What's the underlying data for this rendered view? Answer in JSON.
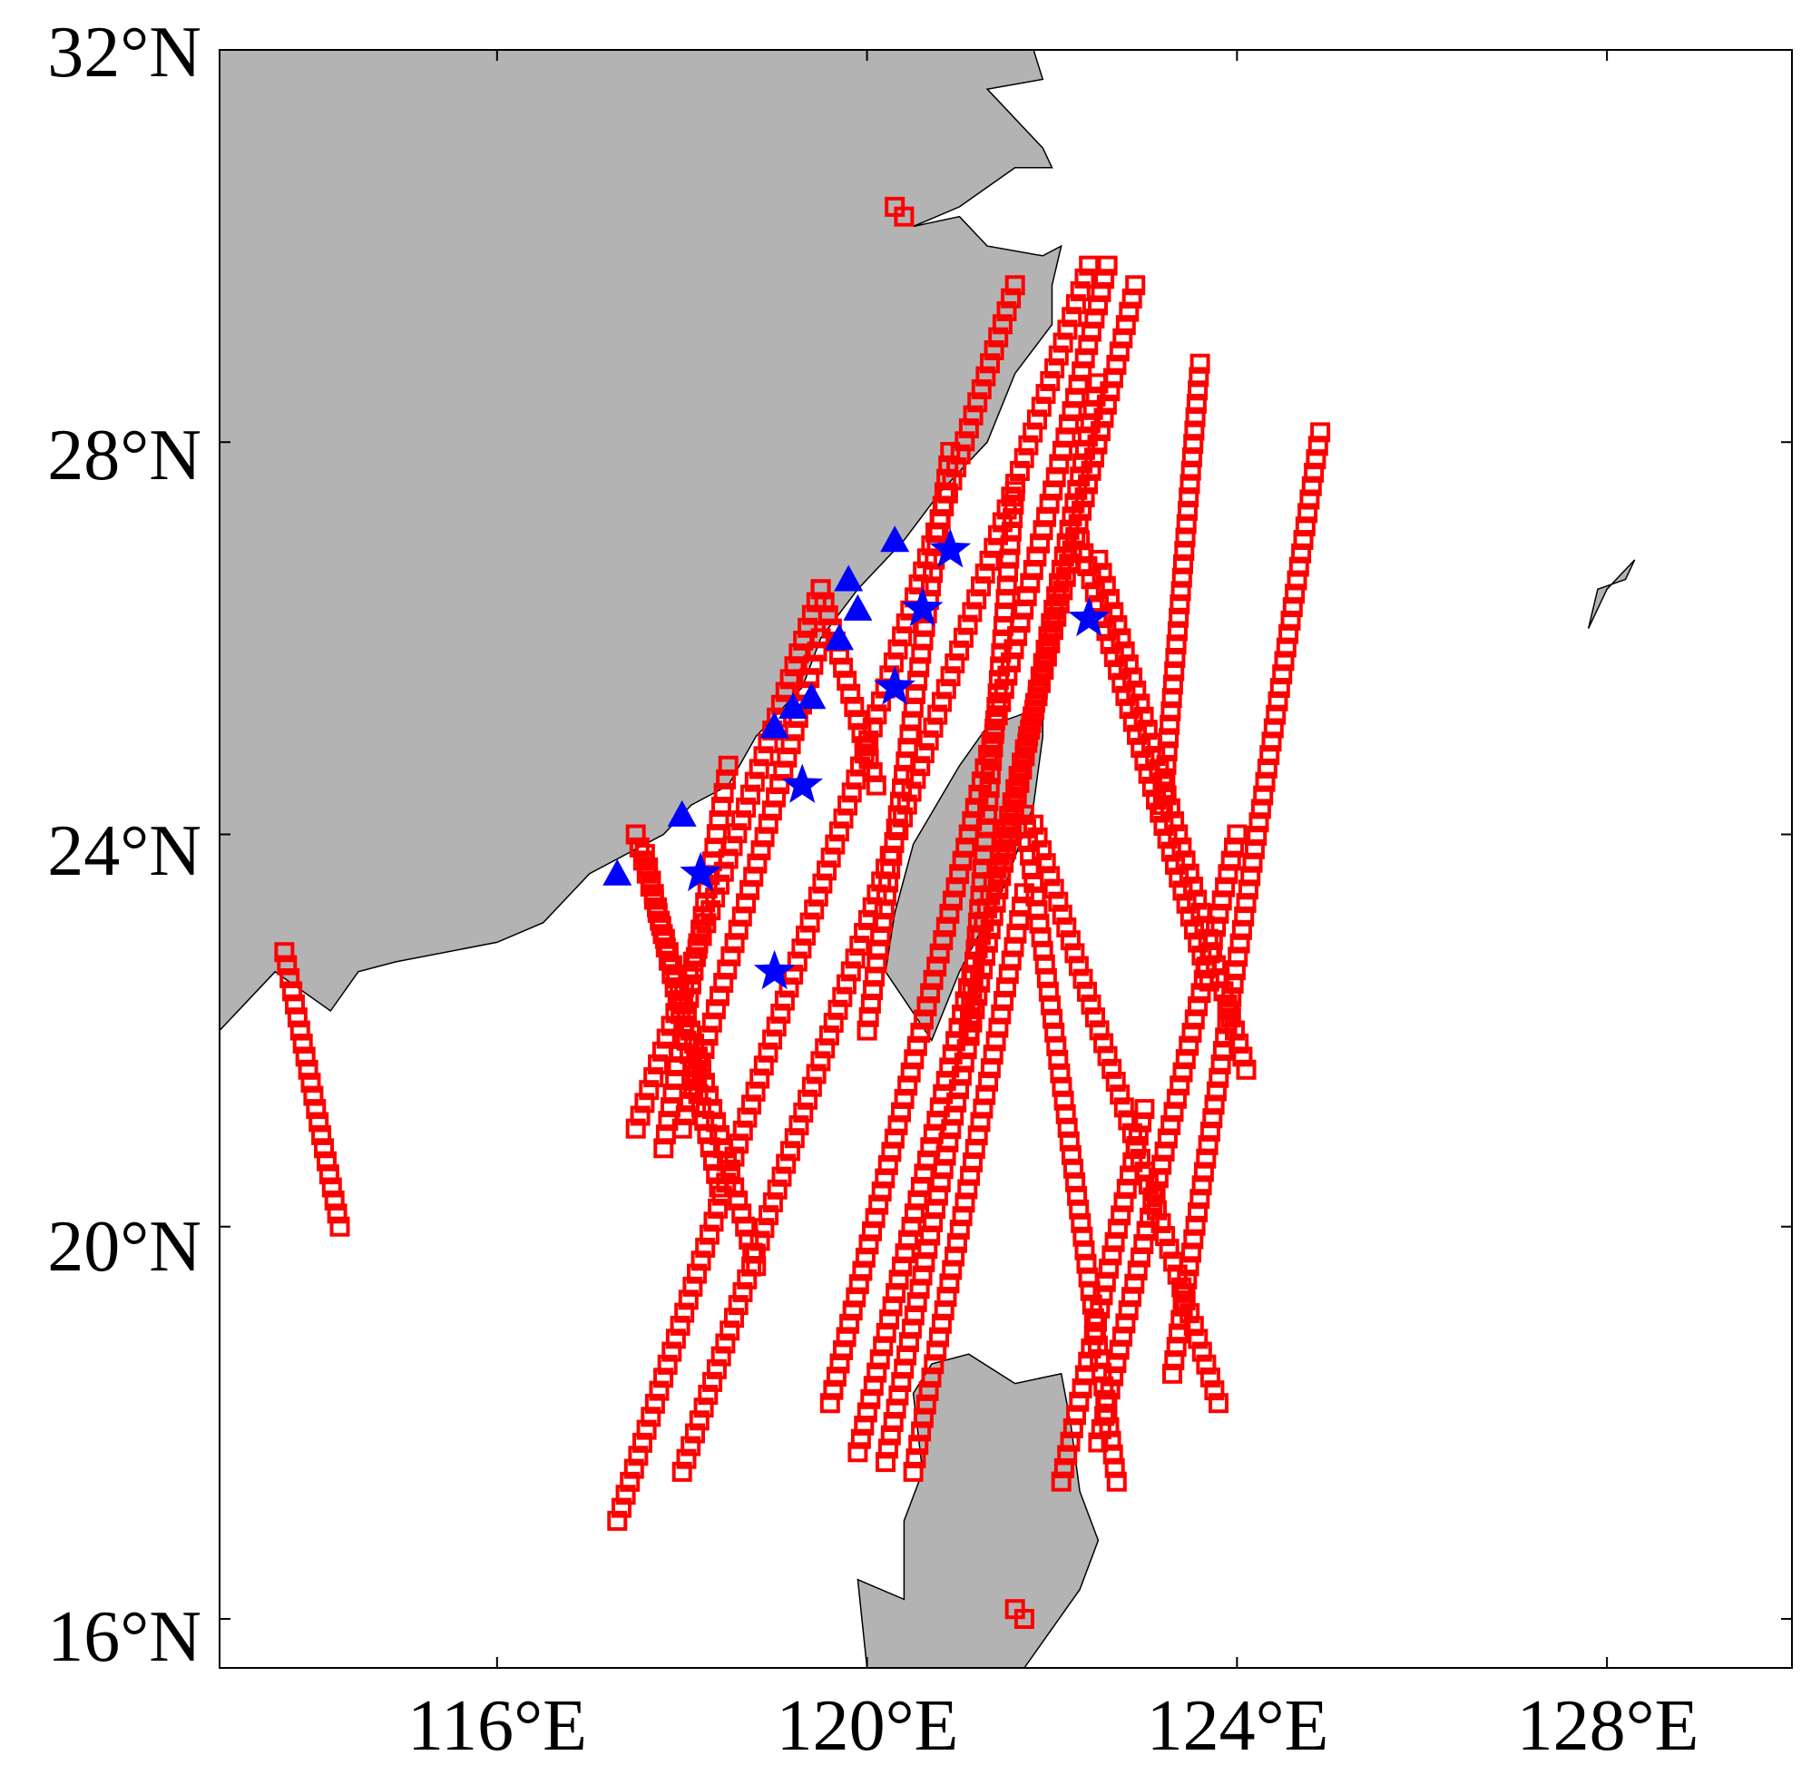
{
  "colors": {
    "land": "#b3b3b3",
    "coastline": "#000000",
    "track": "#ff0000",
    "marker": "#0000ff",
    "frame": "#000000"
  },
  "axes": {
    "x_ticks": [
      {
        "value": 116,
        "label": "116°E"
      },
      {
        "value": 120,
        "label": "120°E"
      },
      {
        "value": 124,
        "label": "124°E"
      },
      {
        "value": 128,
        "label": "128°E"
      }
    ],
    "y_ticks": [
      {
        "value": 32,
        "label": "32°N"
      },
      {
        "value": 28,
        "label": "28°N"
      },
      {
        "value": 24,
        "label": "24°N"
      },
      {
        "value": 20,
        "label": "20°N"
      },
      {
        "value": 16,
        "label": "16°N"
      }
    ],
    "lon_range": [
      113,
      130
    ],
    "lat_range": [
      15.5,
      32
    ]
  },
  "chart_data": {
    "type": "scatter",
    "lon_range": [
      113,
      130
    ],
    "lat_range": [
      15.5,
      32
    ],
    "land": [
      {
        "name": "mainland",
        "lonlat": [
          [
            113,
            32
          ],
          [
            121.8,
            32
          ],
          [
            121.9,
            31.7
          ],
          [
            121.3,
            31.6
          ],
          [
            121.9,
            31.0
          ],
          [
            122.0,
            30.8
          ],
          [
            121.6,
            30.8
          ],
          [
            121.0,
            30.4
          ],
          [
            120.5,
            30.2
          ],
          [
            121.0,
            30.3
          ],
          [
            121.3,
            30.0
          ],
          [
            121.9,
            29.9
          ],
          [
            122.1,
            30.0
          ],
          [
            122.0,
            29.6
          ],
          [
            122.0,
            29.2
          ],
          [
            121.6,
            28.7
          ],
          [
            121.3,
            28.0
          ],
          [
            120.8,
            27.5
          ],
          [
            120.4,
            27.0
          ],
          [
            119.9,
            26.5
          ],
          [
            119.5,
            26.0
          ],
          [
            119.3,
            25.5
          ],
          [
            118.8,
            25.0
          ],
          [
            118.5,
            24.5
          ],
          [
            118.1,
            24.3
          ],
          [
            117.8,
            24.0
          ],
          [
            117.0,
            23.6
          ],
          [
            116.5,
            23.1
          ],
          [
            116.0,
            22.9
          ],
          [
            114.9,
            22.7
          ],
          [
            114.5,
            22.6
          ],
          [
            114.2,
            22.2
          ],
          [
            113.6,
            22.6
          ],
          [
            113,
            22.0
          ]
        ]
      },
      {
        "name": "taiwan",
        "lonlat": [
          [
            121.9,
            25.3
          ],
          [
            121.3,
            25.1
          ],
          [
            121.0,
            24.7
          ],
          [
            120.5,
            23.9
          ],
          [
            120.3,
            23.2
          ],
          [
            120.2,
            22.6
          ],
          [
            120.7,
            21.9
          ],
          [
            121.0,
            22.6
          ],
          [
            121.5,
            23.5
          ],
          [
            121.8,
            24.3
          ],
          [
            121.9,
            25.0
          ]
        ]
      },
      {
        "name": "luzon",
        "lonlat": [
          [
            120.7,
            18.6
          ],
          [
            121.1,
            18.7
          ],
          [
            121.6,
            18.4
          ],
          [
            122.1,
            18.5
          ],
          [
            122.2,
            18.0
          ],
          [
            122.3,
            17.3
          ],
          [
            122.5,
            16.8
          ],
          [
            122.3,
            16.3
          ],
          [
            122.0,
            15.9
          ],
          [
            121.7,
            15.5
          ],
          [
            120.0,
            15.5
          ],
          [
            119.9,
            16.4
          ],
          [
            120.4,
            16.2
          ],
          [
            120.4,
            17.0
          ],
          [
            120.6,
            17.5
          ],
          [
            120.5,
            18.3
          ]
        ]
      },
      {
        "name": "okinawa",
        "lonlat": [
          [
            127.8,
            26.1
          ],
          [
            128.0,
            26.5
          ],
          [
            128.3,
            26.8
          ],
          [
            128.2,
            26.6
          ],
          [
            127.9,
            26.5
          ]
        ]
      }
    ],
    "tracks": [
      {
        "from": [
          113.7,
          22.8
        ],
        "to": [
          114.3,
          20.0
        ]
      },
      {
        "from": [
          120.3,
          30.4
        ],
        "to": [
          120.4,
          30.3
        ]
      },
      {
        "from": [
          117.3,
          17.0
        ],
        "to": [
          121.6,
          29.6
        ]
      },
      {
        "from": [
          118.0,
          17.5
        ],
        "to": [
          122.4,
          29.8
        ]
      },
      {
        "from": [
          117.5,
          21.0
        ],
        "to": [
          119.5,
          26.5
        ]
      },
      {
        "from": [
          117.8,
          20.8
        ],
        "to": [
          118.5,
          24.7
        ]
      },
      {
        "from": [
          118.0,
          21.0
        ],
        "to": [
          119.5,
          26.0
        ]
      },
      {
        "from": [
          119.6,
          18.2
        ],
        "to": [
          122.6,
          29.8
        ]
      },
      {
        "from": [
          119.9,
          17.7
        ],
        "to": [
          122.9,
          29.6
        ]
      },
      {
        "from": [
          120.2,
          17.6
        ],
        "to": [
          122.5,
          28.6
        ]
      },
      {
        "from": [
          120.5,
          17.5
        ],
        "to": [
          121.7,
          23.4
        ]
      },
      {
        "from": [
          120.0,
          22.0
        ],
        "to": [
          120.9,
          27.9
        ]
      },
      {
        "from": [
          121.1,
          22.0
        ],
        "to": [
          121.6,
          27.5
        ]
      },
      {
        "from": [
          122.1,
          17.4
        ],
        "to": [
          123.0,
          21.2
        ]
      },
      {
        "from": [
          122.5,
          17.8
        ],
        "to": [
          124.0,
          24.0
        ]
      },
      {
        "from": [
          123.3,
          18.5
        ],
        "to": [
          124.9,
          28.1
        ]
      },
      {
        "from": [
          123.2,
          24.3
        ],
        "to": [
          123.6,
          28.8
        ]
      },
      {
        "from": [
          117.5,
          24.0
        ],
        "to": [
          118.8,
          19.6
        ]
      },
      {
        "from": [
          117.6,
          23.8
        ],
        "to": [
          118.4,
          20.4
        ]
      },
      {
        "from": [
          119.5,
          26.5
        ],
        "to": [
          120.1,
          24.5
        ]
      },
      {
        "from": [
          121.7,
          24.2
        ],
        "to": [
          122.7,
          17.4
        ]
      },
      {
        "from": [
          121.8,
          24.1
        ],
        "to": [
          123.8,
          18.2
        ]
      },
      {
        "from": [
          122.5,
          26.8
        ],
        "to": [
          124.1,
          21.6
        ]
      },
      {
        "from": [
          122.3,
          27.0
        ],
        "to": [
          123.7,
          22.5
        ]
      },
      {
        "from": [
          121.6,
          16.1
        ],
        "to": [
          121.7,
          16.0
        ]
      }
    ],
    "stars": [
      [
        120.9,
        26.9
      ],
      [
        120.6,
        26.3
      ],
      [
        122.4,
        26.2
      ],
      [
        120.3,
        25.5
      ],
      [
        119.3,
        24.5
      ],
      [
        118.2,
        23.6
      ],
      [
        119.0,
        22.6
      ]
    ],
    "triangles": [
      [
        120.3,
        27.0
      ],
      [
        119.8,
        26.6
      ],
      [
        119.9,
        26.3
      ],
      [
        119.7,
        26.0
      ],
      [
        119.4,
        25.4
      ],
      [
        119.2,
        25.3
      ],
      [
        119.0,
        25.1
      ],
      [
        118.0,
        24.2
      ],
      [
        117.3,
        23.6
      ]
    ]
  }
}
